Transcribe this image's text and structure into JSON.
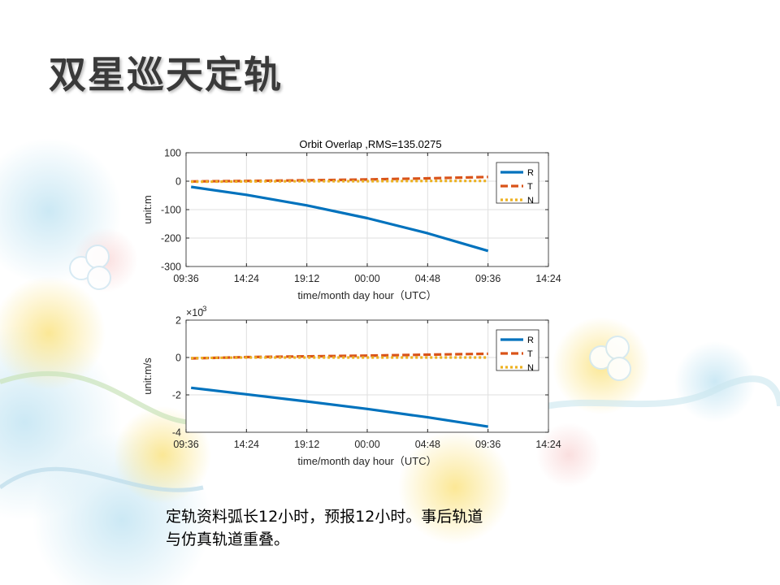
{
  "slide": {
    "title": "双星巡天定轨",
    "caption_lines": [
      "定轨资料弧长12小时，预报12小时。事后轨道",
      "与仿真轨道重叠。"
    ]
  },
  "colors": {
    "R": "#0072bd",
    "T": "#d95319",
    "N": "#edb120",
    "grid": "#dfdfdf",
    "axis": "#262626"
  },
  "chart_data": [
    {
      "type": "line",
      "title": "Orbit Overlap ,RMS=135.0275",
      "xlabel": "time/month day hour（UTC）",
      "ylabel": "unit:m",
      "exponent_label": "",
      "ylim": [
        -300,
        100
      ],
      "yticks": [
        100,
        0,
        -100,
        -200,
        -300
      ],
      "ytick_labels": [
        "100",
        "0",
        "-100",
        "-200",
        "-300"
      ],
      "xlim": [
        0,
        28.8
      ],
      "xticks": [
        0,
        4.8,
        9.6,
        14.4,
        19.2,
        24.0,
        28.8
      ],
      "xtick_labels": [
        "09:36",
        "14:24",
        "19:12",
        "00:00",
        "04:48",
        "09:36",
        "14:24"
      ],
      "grid": true,
      "legend": "top-right",
      "x": [
        0.4,
        4.8,
        9.6,
        14.4,
        19.2,
        24.0
      ],
      "series": [
        {
          "name": "R",
          "values": [
            -20,
            -48,
            -85,
            -130,
            -183,
            -245
          ]
        },
        {
          "name": "T",
          "values": [
            -1,
            1,
            3,
            6,
            10,
            15
          ]
        },
        {
          "name": "N",
          "values": [
            -2,
            -1,
            0,
            0,
            1,
            1
          ]
        }
      ]
    },
    {
      "type": "line",
      "title": "",
      "xlabel": "time/month day hour（UTC）",
      "ylabel": "unit:m/s",
      "exponent_label": "×10",
      "exponent_power": "-3",
      "ylim": [
        -4,
        2
      ],
      "yticks": [
        2,
        0,
        -2,
        -4
      ],
      "ytick_labels": [
        "2",
        "0",
        "-2",
        "-4"
      ],
      "xlim": [
        0,
        28.8
      ],
      "xticks": [
        0,
        4.8,
        9.6,
        14.4,
        19.2,
        24.0,
        28.8
      ],
      "xtick_labels": [
        "09:36",
        "14:24",
        "19:12",
        "00:00",
        "04:48",
        "09:36",
        "14:24"
      ],
      "grid": true,
      "legend": "top-right",
      "x": [
        0.4,
        4.8,
        9.6,
        14.4,
        19.2,
        24.0
      ],
      "series": [
        {
          "name": "R",
          "values": [
            -1.62,
            -1.97,
            -2.35,
            -2.75,
            -3.2,
            -3.7
          ]
        },
        {
          "name": "T",
          "values": [
            -0.05,
            0.02,
            0.06,
            0.1,
            0.15,
            0.2
          ]
        },
        {
          "name": "N",
          "values": [
            -0.03,
            0.0,
            0.0,
            0.0,
            0.0,
            0.0
          ]
        }
      ]
    }
  ]
}
